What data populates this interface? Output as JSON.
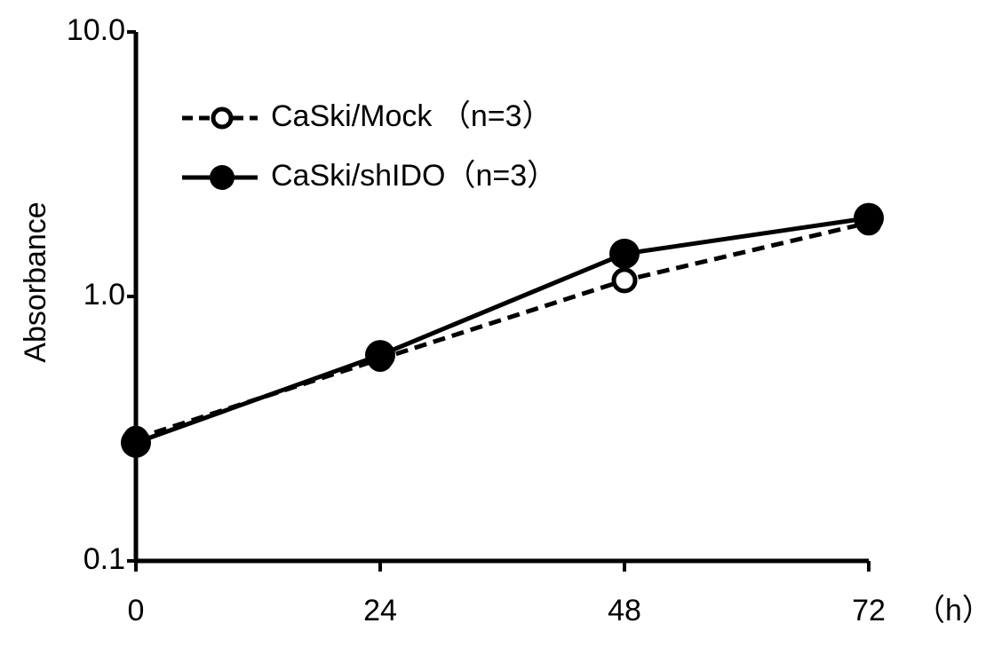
{
  "chart_data": {
    "type": "line",
    "x_label": "（h）",
    "y_label": "Absorbance",
    "x": [
      0,
      24,
      48,
      72
    ],
    "series": [
      {
        "name": "CaSki/Mock （n=3）",
        "color": "#000000",
        "style": "dashed",
        "marker": "open",
        "values": [
          0.29,
          0.58,
          1.15,
          1.9
        ]
      },
      {
        "name": "CaSki/shIDO（n=3）",
        "color": "#000000",
        "style": "solid",
        "marker": "filled",
        "values": [
          0.28,
          0.6,
          1.45,
          1.98
        ]
      }
    ],
    "xlim": [
      0,
      72
    ],
    "xticks": [
      0,
      24,
      48,
      72
    ],
    "ylim": [
      0.1,
      10
    ],
    "yticks": [
      0.1,
      {
        "value": 1,
        "label": "1.0"
      },
      {
        "value": 10,
        "label": "10.0"
      }
    ],
    "log_y": true,
    "grid": false,
    "legend": "upper-left"
  }
}
